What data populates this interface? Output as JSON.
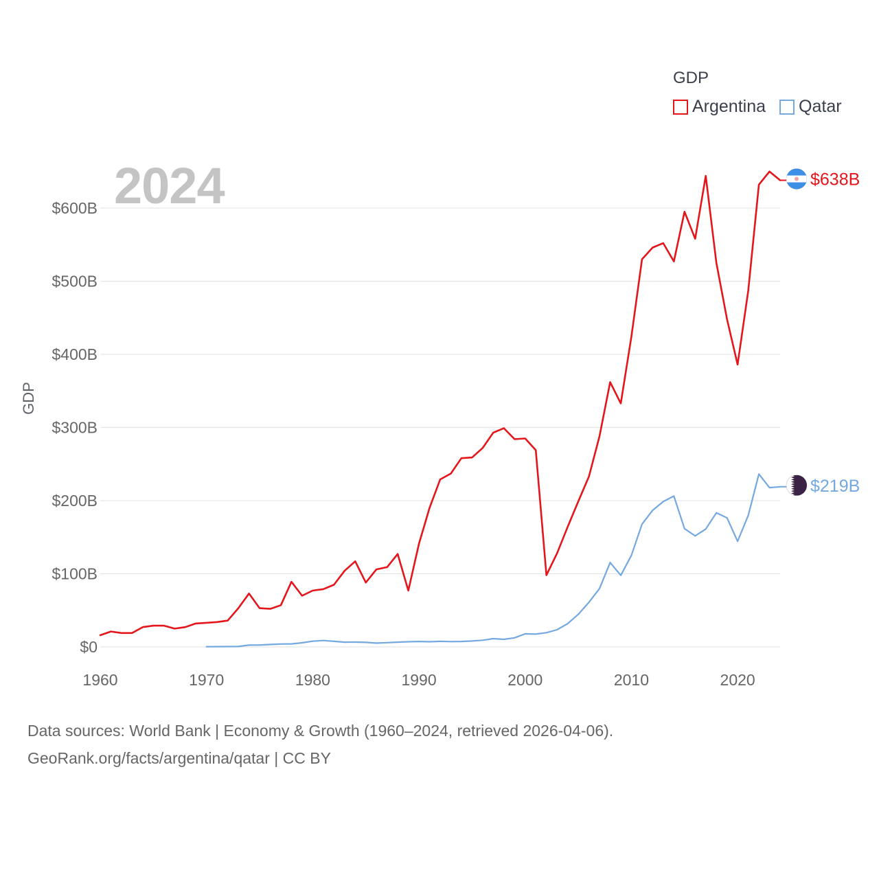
{
  "legend": {
    "title": "GDP",
    "items": [
      {
        "label": "Argentina",
        "color": "#e4151b"
      },
      {
        "label": "Qatar",
        "color": "#74a8e0"
      }
    ]
  },
  "year_label": "2024",
  "footer": {
    "line1": "Data sources: World Bank | Economy & Growth (1960–2024, retrieved 2026-04-06).",
    "line2": "GeoRank.org/facts/argentina/qatar | CC BY"
  },
  "chart_data": {
    "type": "line",
    "title": "GDP",
    "ylabel": "GDP",
    "xlabel": "",
    "xlim": [
      1960,
      2024
    ],
    "ylim": [
      0,
      640
    ],
    "x_ticks": [
      1960,
      1970,
      1980,
      1990,
      2000,
      2010,
      2020
    ],
    "y_ticks": [
      {
        "value": 0,
        "label": "$0"
      },
      {
        "value": 100,
        "label": "$100B"
      },
      {
        "value": 200,
        "label": "$200B"
      },
      {
        "value": 300,
        "label": "$300B"
      },
      {
        "value": 400,
        "label": "$400B"
      },
      {
        "value": 500,
        "label": "$500B"
      },
      {
        "value": 600,
        "label": "$600B"
      }
    ],
    "units": "billions of US dollars",
    "series": [
      {
        "name": "Argentina",
        "color": "#e4151b",
        "end_label": "$638B",
        "flag": "argentina-flag",
        "x": [
          1960,
          1961,
          1962,
          1963,
          1964,
          1965,
          1966,
          1967,
          1968,
          1969,
          1970,
          1971,
          1972,
          1973,
          1974,
          1975,
          1976,
          1977,
          1978,
          1979,
          1980,
          1981,
          1982,
          1983,
          1984,
          1985,
          1986,
          1987,
          1988,
          1989,
          1990,
          1991,
          1992,
          1993,
          1994,
          1995,
          1996,
          1997,
          1998,
          1999,
          2000,
          2001,
          2002,
          2003,
          2004,
          2005,
          2006,
          2007,
          2008,
          2009,
          2010,
          2011,
          2012,
          2013,
          2014,
          2015,
          2016,
          2017,
          2018,
          2019,
          2020,
          2021,
          2022,
          2023,
          2024
        ],
        "values": [
          16,
          21,
          19,
          19,
          27,
          29,
          29,
          25,
          27,
          32,
          33,
          34,
          36,
          53,
          73,
          53,
          52,
          57,
          89,
          70,
          77,
          79,
          85,
          104,
          117,
          88,
          106,
          109,
          127,
          77,
          141,
          190,
          229,
          237,
          258,
          259,
          272,
          293,
          299,
          284,
          285,
          269,
          98,
          128,
          164,
          199,
          233,
          288,
          362,
          333,
          424,
          530,
          546,
          552,
          527,
          595,
          558,
          644,
          525,
          448,
          386,
          487,
          632,
          650,
          638
        ]
      },
      {
        "name": "Qatar",
        "color": "#74a8e0",
        "end_label": "$219B",
        "flag": "qatar-flag",
        "x": [
          1970,
          1971,
          1972,
          1973,
          1974,
          1975,
          1976,
          1977,
          1978,
          1979,
          1980,
          1981,
          1982,
          1983,
          1984,
          1985,
          1986,
          1987,
          1988,
          1989,
          1990,
          1991,
          1992,
          1993,
          1994,
          1995,
          1996,
          1997,
          1998,
          1999,
          2000,
          2001,
          2002,
          2003,
          2004,
          2005,
          2006,
          2007,
          2008,
          2009,
          2010,
          2011,
          2012,
          2013,
          2014,
          2015,
          2016,
          2017,
          2018,
          2019,
          2020,
          2021,
          2022,
          2023,
          2024
        ],
        "values": [
          0.3,
          0.4,
          0.5,
          0.6,
          2.4,
          2.5,
          3.3,
          3.9,
          4.1,
          5.6,
          7.8,
          8.7,
          7.6,
          6.5,
          6.6,
          6.2,
          5.2,
          5.8,
          6.5,
          7.0,
          7.4,
          7.0,
          7.6,
          7.2,
          7.4,
          8.1,
          9.1,
          11.3,
          10.3,
          12.4,
          17.8,
          17.5,
          19.4,
          23.5,
          31.7,
          44.5,
          60.9,
          79.7,
          115.3,
          97.8,
          125.1,
          167.8,
          186.8,
          198.7,
          206.2,
          161.7,
          151.7,
          161.1,
          183.3,
          176.4,
          144.4,
          179.7,
          236.3,
          217.7,
          219
        ]
      }
    ]
  }
}
